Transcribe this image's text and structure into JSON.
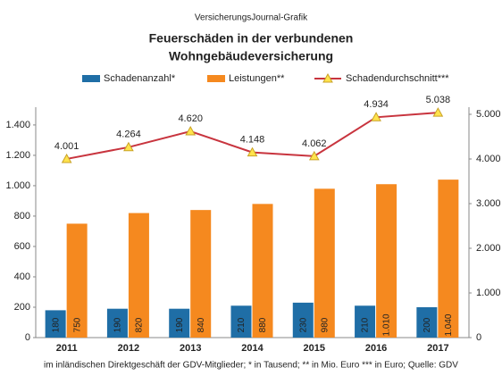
{
  "chart_data": {
    "type": "bar",
    "header": "VersicherungsJournal-Grafik",
    "title": [
      "Feuerschäden  in der verbundenen",
      "Wohngebäudeversicherung"
    ],
    "footnote": "im inländischen Direktgeschäft der GDV-Mitglieder;  * in Tausend;  ** in Mio. Euro *** in Euro; Quelle: GDV",
    "categories": [
      "2011",
      "2012",
      "2013",
      "2014",
      "2015",
      "2016",
      "2017"
    ],
    "series": [
      {
        "name": "Schadenanzahl*",
        "color": "#1f6ea6",
        "values": [
          180,
          190,
          190,
          210,
          230,
          210,
          200
        ],
        "value_labels": [
          "180",
          "190",
          "190",
          "210",
          "230",
          "210",
          "200"
        ]
      },
      {
        "name": "Leistungen**",
        "color": "#f5891f",
        "values": [
          750,
          820,
          840,
          880,
          980,
          1010,
          1040
        ],
        "value_labels": [
          "750",
          "820",
          "840",
          "880",
          "980",
          "1.010",
          "1.040"
        ]
      },
      {
        "name": "Schadendurchschnitt***",
        "type": "line",
        "axis": "y2",
        "color": "#c8343e",
        "marker_color": "#ffe34d",
        "values": [
          4001,
          4264,
          4620,
          4148,
          4062,
          4934,
          5038
        ],
        "value_labels": [
          "4.001",
          "4.264",
          "4.620",
          "4.148",
          "4.062",
          "4.934",
          "5.038"
        ]
      }
    ],
    "ylim": [
      0,
      1470
    ],
    "yticks": [
      0,
      200,
      400,
      600,
      800,
      {
        "value": 1000,
        "label": "1.000"
      },
      {
        "value": 1200,
        "label": "1.200"
      },
      {
        "value": 1400,
        "label": "1.400"
      }
    ],
    "y2lim": [
      0,
      5000
    ],
    "y2ticks": [
      0,
      {
        "value": 1000,
        "label": "1.000"
      },
      {
        "value": 2000,
        "label": "2.000"
      },
      {
        "value": 3000,
        "label": "3.000"
      },
      {
        "value": 4000,
        "label": "4.000"
      },
      {
        "value": 5000,
        "label": "5.000"
      }
    ],
    "grid": false
  }
}
